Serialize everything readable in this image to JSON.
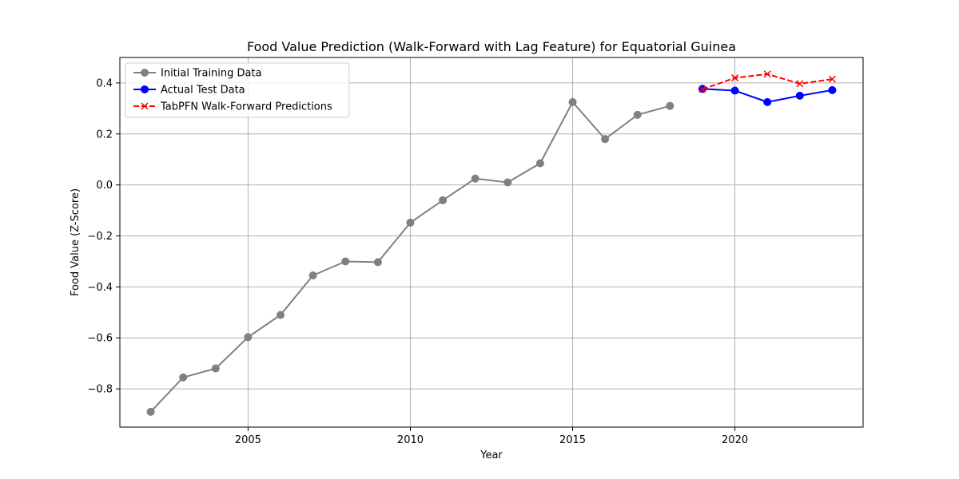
{
  "chart_data": {
    "type": "line",
    "title": "Food Value Prediction (Walk-Forward with Lag Feature) for Equatorial Guinea",
    "xlabel": "Year",
    "ylabel": "Food Value (Z-Score)",
    "xlim": [
      2001.05,
      2023.95
    ],
    "ylim": [
      -0.95,
      0.5
    ],
    "xticks": [
      2005,
      2010,
      2015,
      2020
    ],
    "yticks": [
      -0.8,
      -0.6,
      -0.4,
      -0.2,
      0.0,
      0.2,
      0.4
    ],
    "ytick_labels": [
      "−0.8",
      "−0.6",
      "−0.4",
      "−0.2",
      "0.0",
      "0.2",
      "0.4"
    ],
    "grid": true,
    "legend_position": "top-left",
    "series": [
      {
        "name": "Initial Training Data",
        "color": "#808080",
        "marker": "circle",
        "linestyle": "solid",
        "x": [
          2002,
          2003,
          2004,
          2005,
          2006,
          2007,
          2008,
          2009,
          2010,
          2011,
          2012,
          2013,
          2014,
          2015,
          2016,
          2017,
          2018
        ],
        "y": [
          -0.89,
          -0.755,
          -0.72,
          -0.597,
          -0.51,
          -0.355,
          -0.3,
          -0.303,
          -0.148,
          -0.06,
          0.025,
          0.01,
          0.085,
          0.325,
          0.18,
          0.275,
          0.31
        ]
      },
      {
        "name": "Actual Test Data",
        "color": "#0000ff",
        "marker": "circle",
        "linestyle": "solid",
        "x": [
          2019,
          2020,
          2021,
          2022,
          2023
        ],
        "y": [
          0.377,
          0.37,
          0.325,
          0.35,
          0.372
        ]
      },
      {
        "name": "TabPFN Walk-Forward Predictions",
        "color": "#ff0000",
        "marker": "x",
        "linestyle": "dashed",
        "x": [
          2019,
          2020,
          2021,
          2022,
          2023
        ],
        "y": [
          0.375,
          0.42,
          0.435,
          0.397,
          0.415
        ]
      }
    ]
  }
}
